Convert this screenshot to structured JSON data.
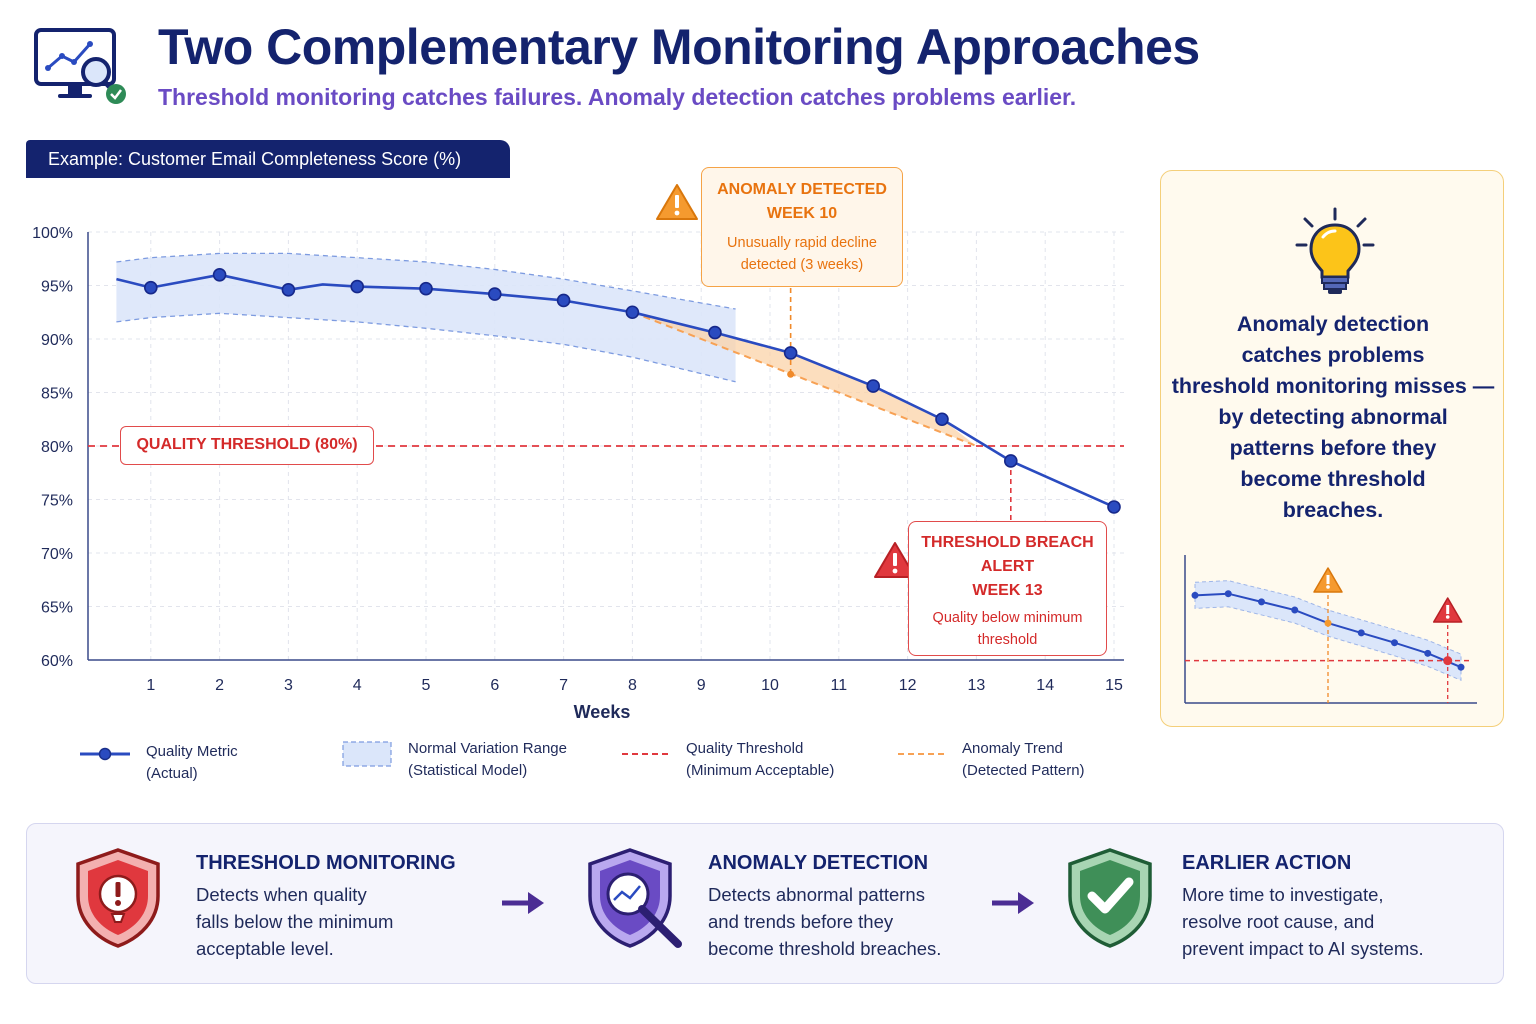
{
  "header": {
    "title": "Two Complementary Monitoring Approaches",
    "subtitle": "Threshold monitoring catches failures. Anomaly detection catches problems earlier."
  },
  "example_tag": "Example: Customer Email Completeness Score (%)",
  "chart_data": {
    "type": "line",
    "xlabel": "Weeks",
    "ylabel": "",
    "x": [
      0.5,
      1,
      2,
      3,
      3.5,
      4,
      5,
      6,
      7,
      8,
      9.2,
      10.3,
      11.5,
      12.5,
      13.5,
      15
    ],
    "xticks": [
      1,
      2,
      3,
      4,
      5,
      6,
      7,
      8,
      9,
      10,
      11,
      12,
      13,
      14,
      15
    ],
    "xlim": [
      0,
      15.3
    ],
    "ylim": [
      60,
      100
    ],
    "yticks": [
      "60%",
      "65%",
      "70%",
      "75%",
      "80%",
      "85%",
      "90%",
      "95%",
      "100%"
    ],
    "series": [
      {
        "name": "Quality Metric (Actual)",
        "x": [
          0.5,
          1,
          2,
          3,
          3.5,
          4,
          5,
          6,
          7,
          8,
          9.2,
          10.3,
          11.5,
          12.5,
          13.5,
          15
        ],
        "values": [
          95.6,
          94.8,
          96.0,
          94.6,
          95.1,
          94.9,
          94.7,
          94.2,
          93.6,
          92.5,
          90.6,
          88.7,
          85.6,
          82.5,
          78.6,
          74.3
        ]
      }
    ],
    "normal_range": {
      "x": [
        0.5,
        1,
        2,
        3,
        4,
        5,
        6,
        7,
        8,
        9.5
      ],
      "upper": [
        97.2,
        97.6,
        98.0,
        98.0,
        97.6,
        97.2,
        96.5,
        95.6,
        94.5,
        92.8
      ],
      "lower": [
        91.6,
        92.0,
        92.4,
        92.0,
        91.6,
        91.0,
        90.3,
        89.5,
        88.3,
        86.0
      ]
    },
    "threshold": 80,
    "threshold_label": "QUALITY THRESHOLD (80%)",
    "anomaly_trend": {
      "x": [
        8,
        13
      ],
      "values": [
        92.5,
        80
      ]
    },
    "anomaly_week": 10,
    "breach_week": 13,
    "grid": true,
    "legend": [
      {
        "label": "Quality Metric",
        "sub": "(Actual)",
        "color": "#2a4bc0"
      },
      {
        "label": "Normal Variation Range",
        "sub": "(Statistical Model)",
        "color": "#9fb6e8"
      },
      {
        "label": "Quality Threshold",
        "sub": "(Minimum Acceptable)",
        "color": "#e0383e"
      },
      {
        "label": "Anomaly Trend",
        "sub": "(Detected Pattern)",
        "color": "#f7a154"
      }
    ]
  },
  "annotations": {
    "anomaly": {
      "line1": "ANOMALY DETECTED",
      "line2": "WEEK 10",
      "body1": "Unusually rapid decline",
      "body2": "detected (3 weeks)"
    },
    "breach": {
      "line1": "THRESHOLD BREACH",
      "line2": "ALERT",
      "line3": "WEEK 13",
      "body1": "Quality below minimum",
      "body2": "threshold"
    }
  },
  "side_card": {
    "lines": [
      "Anomaly detection",
      "catches problems",
      "threshold monitoring misses —",
      "by detecting abnormal",
      "patterns before they",
      "become threshold",
      "breaches."
    ],
    "mini_chart": {
      "values": [
        8.0,
        8.2,
        7.2,
        6.2,
        4.6,
        3.4,
        2.2,
        0.9,
        -0.8
      ],
      "anomaly_index": 4,
      "breach_index": 8,
      "threshold": 0
    }
  },
  "steps": [
    {
      "title": "THRESHOLD MONITORING",
      "desc": [
        "Detects when quality",
        "falls below the minimum",
        "acceptable level."
      ],
      "icon": "shield-alert-icon"
    },
    {
      "title": "ANOMALY DETECTION",
      "desc": [
        "Detects abnormal patterns",
        "and trends before they",
        "become threshold breaches."
      ],
      "icon": "shield-search-icon"
    },
    {
      "title": "EARLIER ACTION",
      "desc": [
        "More time to investigate,",
        "resolve root cause, and",
        "prevent impact to AI systems."
      ],
      "icon": "shield-check-icon"
    }
  ],
  "colors": {
    "navy": "#14236e",
    "purple": "#6a4bc4",
    "metric": "#2a4bc0",
    "band": "#dbe6fa",
    "threshold": "#e0383e",
    "anomaly": "#f7a154",
    "card_bg": "#fffaee"
  }
}
